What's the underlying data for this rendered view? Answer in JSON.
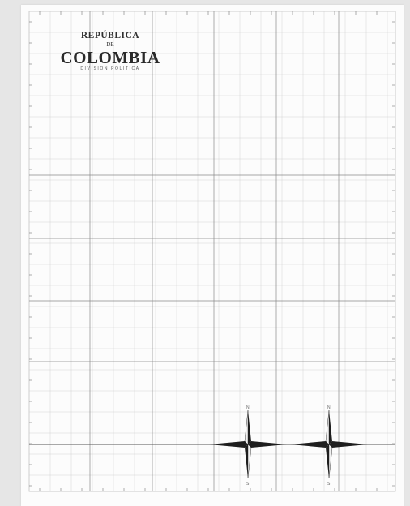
{
  "map": {
    "title_line1": "REPÚBLICA",
    "title_line2": "DE",
    "title_line3": "COLOMBIA",
    "subtitle": "DIVISIÓN POLÍTICA"
  },
  "compass_roses": [
    {
      "name": "compass-rose-west",
      "north": "N",
      "south": "S"
    },
    {
      "name": "compass-rose-east",
      "north": "N",
      "south": "S"
    }
  ],
  "colors": {
    "sheet": "#fcfcfc",
    "grid_major": "#8a8a8a",
    "grid_minor": "#d2d2d2",
    "equator": "#555555",
    "compass": "#1e1e1e"
  }
}
